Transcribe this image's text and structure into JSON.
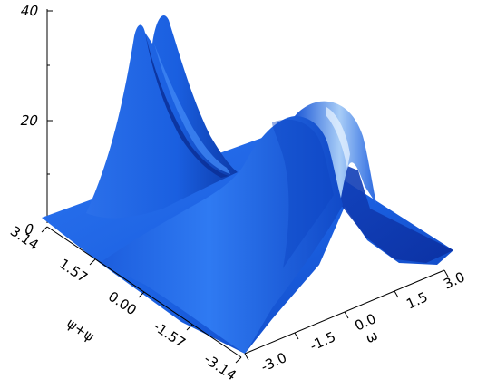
{
  "chart_data": {
    "type": "surface",
    "xlabel": "ω",
    "ylabel": "ψ+ψ",
    "zlabel": "",
    "x_ticks": [
      "-3.0",
      "-1.5",
      "0.0",
      "1.5",
      "3.0"
    ],
    "y_ticks": [
      "-3.14",
      "-1.57",
      "0.00",
      "1.57",
      "3.14"
    ],
    "z_ticks": [
      "0",
      "20",
      "40"
    ],
    "xlim": [
      -3.0,
      3.0
    ],
    "ylim": [
      -3.14,
      3.14
    ],
    "zlim": [
      0,
      40
    ],
    "surface_color": "#1a5fe0",
    "highlight_color": "#a8cdf7",
    "shadow_color": "#0b2fa0",
    "features": [
      {
        "name": "back-left twin peaks",
        "x": -3.0,
        "y": 1.8,
        "z": 38
      },
      {
        "name": "front central hump",
        "x": -0.6,
        "y": -0.4,
        "z": 26
      },
      {
        "name": "right twin ridge",
        "x": 0.6,
        "y": 2.0,
        "z": 22
      }
    ]
  }
}
